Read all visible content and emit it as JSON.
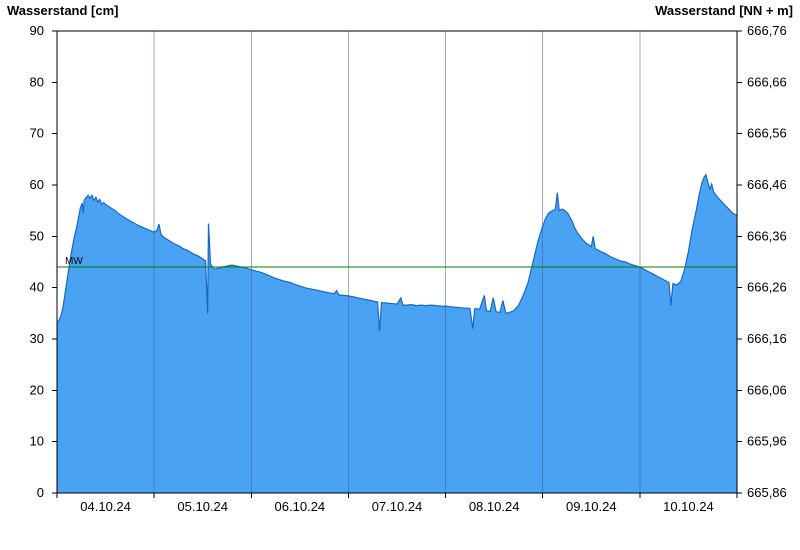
{
  "chart_data": {
    "type": "area",
    "title_left_axis": "Wasserstand [cm]",
    "title_right_axis": "Wasserstand [NN + m]",
    "xlim_days": [
      0,
      7
    ],
    "x_tick_labels": [
      "04.10.24",
      "05.10.24",
      "06.10.24",
      "07.10.24",
      "08.10.24",
      "09.10.24",
      "10.10.24"
    ],
    "ylim_cm": [
      0,
      90
    ],
    "y_ticks_cm": [
      0,
      10,
      20,
      30,
      40,
      50,
      60,
      70,
      80,
      90
    ],
    "right_axis_labels": [
      "665,86",
      "665,96",
      "666,06",
      "666,16",
      "666,26",
      "666,36",
      "666,46",
      "666,56",
      "666,66",
      "666,76"
    ],
    "mean_water_line": {
      "label": "MW",
      "value_cm": 44
    },
    "legend": "none",
    "grid": "vertical-day-boundaries",
    "colors": {
      "fill": "#4aa2f2",
      "line": "#1668c8",
      "mw_line": "#008000",
      "grid": "#3d5a85",
      "axis": "#000000"
    },
    "series": [
      {
        "name": "Wasserstand",
        "points": [
          [
            0.0,
            33.2
          ],
          [
            0.02,
            33.6
          ],
          [
            0.04,
            34.5
          ],
          [
            0.06,
            36.0
          ],
          [
            0.08,
            38.5
          ],
          [
            0.1,
            41.0
          ],
          [
            0.12,
            43.5
          ],
          [
            0.14,
            46.0
          ],
          [
            0.16,
            48.0
          ],
          [
            0.18,
            50.0
          ],
          [
            0.2,
            51.5
          ],
          [
            0.22,
            53.5
          ],
          [
            0.24,
            55.5
          ],
          [
            0.26,
            56.5
          ],
          [
            0.27,
            54.5
          ],
          [
            0.28,
            57.0
          ],
          [
            0.3,
            57.5
          ],
          [
            0.32,
            58.0
          ],
          [
            0.34,
            57.4
          ],
          [
            0.36,
            58.0
          ],
          [
            0.38,
            57.0
          ],
          [
            0.4,
            57.6
          ],
          [
            0.42,
            56.6
          ],
          [
            0.44,
            57.2
          ],
          [
            0.46,
            56.2
          ],
          [
            0.48,
            56.6
          ],
          [
            0.5,
            56.2
          ],
          [
            0.55,
            55.6
          ],
          [
            0.6,
            55.0
          ],
          [
            0.65,
            54.2
          ],
          [
            0.7,
            53.6
          ],
          [
            0.75,
            53.0
          ],
          [
            0.8,
            52.5
          ],
          [
            0.85,
            52.0
          ],
          [
            0.9,
            51.6
          ],
          [
            0.95,
            51.2
          ],
          [
            1.0,
            50.8
          ],
          [
            1.03,
            51.2
          ],
          [
            1.05,
            52.4
          ],
          [
            1.07,
            50.4
          ],
          [
            1.1,
            49.8
          ],
          [
            1.15,
            49.2
          ],
          [
            1.2,
            48.6
          ],
          [
            1.25,
            48.2
          ],
          [
            1.3,
            47.6
          ],
          [
            1.35,
            47.2
          ],
          [
            1.4,
            46.6
          ],
          [
            1.45,
            46.2
          ],
          [
            1.5,
            45.6
          ],
          [
            1.53,
            45.2
          ],
          [
            1.55,
            35.0
          ],
          [
            1.56,
            52.5
          ],
          [
            1.58,
            44.6
          ],
          [
            1.62,
            43.6
          ],
          [
            1.66,
            43.8
          ],
          [
            1.7,
            44.0
          ],
          [
            1.75,
            44.2
          ],
          [
            1.8,
            44.4
          ],
          [
            1.85,
            44.2
          ],
          [
            1.9,
            44.0
          ],
          [
            1.95,
            43.8
          ],
          [
            2.0,
            43.5
          ],
          [
            2.05,
            43.2
          ],
          [
            2.1,
            43.0
          ],
          [
            2.15,
            42.6
          ],
          [
            2.2,
            42.2
          ],
          [
            2.25,
            41.8
          ],
          [
            2.3,
            41.5
          ],
          [
            2.35,
            41.2
          ],
          [
            2.4,
            41.0
          ],
          [
            2.45,
            40.6
          ],
          [
            2.5,
            40.3
          ],
          [
            2.55,
            40.0
          ],
          [
            2.6,
            39.8
          ],
          [
            2.65,
            39.6
          ],
          [
            2.7,
            39.4
          ],
          [
            2.75,
            39.2
          ],
          [
            2.8,
            39.0
          ],
          [
            2.85,
            38.8
          ],
          [
            2.88,
            39.4
          ],
          [
            2.9,
            38.6
          ],
          [
            2.95,
            38.5
          ],
          [
            3.0,
            38.4
          ],
          [
            3.05,
            38.2
          ],
          [
            3.1,
            38.0
          ],
          [
            3.15,
            37.8
          ],
          [
            3.2,
            37.6
          ],
          [
            3.25,
            37.4
          ],
          [
            3.3,
            37.2
          ],
          [
            3.32,
            31.5
          ],
          [
            3.34,
            37.1
          ],
          [
            3.4,
            37.0
          ],
          [
            3.45,
            36.9
          ],
          [
            3.5,
            36.8
          ],
          [
            3.54,
            38.0
          ],
          [
            3.56,
            36.6
          ],
          [
            3.6,
            36.6
          ],
          [
            3.65,
            36.7
          ],
          [
            3.7,
            36.5
          ],
          [
            3.75,
            36.6
          ],
          [
            3.8,
            36.5
          ],
          [
            3.85,
            36.6
          ],
          [
            3.9,
            36.5
          ],
          [
            3.95,
            36.4
          ],
          [
            4.0,
            36.4
          ],
          [
            4.05,
            36.3
          ],
          [
            4.1,
            36.2
          ],
          [
            4.15,
            36.1
          ],
          [
            4.2,
            36.0
          ],
          [
            4.25,
            36.0
          ],
          [
            4.28,
            32.0
          ],
          [
            4.3,
            35.9
          ],
          [
            4.35,
            35.8
          ],
          [
            4.4,
            38.5
          ],
          [
            4.42,
            35.5
          ],
          [
            4.46,
            35.4
          ],
          [
            4.49,
            38.0
          ],
          [
            4.52,
            35.3
          ],
          [
            4.56,
            35.2
          ],
          [
            4.59,
            37.5
          ],
          [
            4.62,
            35.0
          ],
          [
            4.66,
            35.2
          ],
          [
            4.7,
            35.5
          ],
          [
            4.75,
            36.5
          ],
          [
            4.8,
            38.5
          ],
          [
            4.85,
            41.0
          ],
          [
            4.9,
            45.0
          ],
          [
            4.95,
            49.0
          ],
          [
            5.0,
            52.0
          ],
          [
            5.03,
            53.5
          ],
          [
            5.06,
            54.5
          ],
          [
            5.1,
            55.0
          ],
          [
            5.13,
            55.2
          ],
          [
            5.15,
            58.5
          ],
          [
            5.17,
            55.0
          ],
          [
            5.2,
            55.3
          ],
          [
            5.23,
            55.0
          ],
          [
            5.26,
            54.4
          ],
          [
            5.3,
            53.0
          ],
          [
            5.33,
            51.6
          ],
          [
            5.36,
            50.6
          ],
          [
            5.4,
            49.6
          ],
          [
            5.45,
            48.6
          ],
          [
            5.5,
            48.0
          ],
          [
            5.52,
            50.0
          ],
          [
            5.54,
            47.6
          ],
          [
            5.6,
            47.0
          ],
          [
            5.65,
            46.6
          ],
          [
            5.7,
            46.0
          ],
          [
            5.75,
            45.6
          ],
          [
            5.8,
            45.2
          ],
          [
            5.85,
            45.0
          ],
          [
            5.9,
            44.6
          ],
          [
            5.95,
            44.3
          ],
          [
            6.0,
            44.0
          ],
          [
            6.05,
            43.5
          ],
          [
            6.1,
            43.0
          ],
          [
            6.15,
            42.5
          ],
          [
            6.2,
            42.0
          ],
          [
            6.25,
            41.5
          ],
          [
            6.3,
            41.0
          ],
          [
            6.32,
            36.5
          ],
          [
            6.34,
            40.8
          ],
          [
            6.38,
            40.5
          ],
          [
            6.42,
            41.2
          ],
          [
            6.46,
            43.5
          ],
          [
            6.5,
            47.0
          ],
          [
            6.54,
            51.5
          ],
          [
            6.58,
            55.0
          ],
          [
            6.61,
            58.0
          ],
          [
            6.64,
            60.5
          ],
          [
            6.66,
            61.5
          ],
          [
            6.68,
            62.0
          ],
          [
            6.7,
            60.5
          ],
          [
            6.72,
            59.2
          ],
          [
            6.74,
            60.2
          ],
          [
            6.76,
            58.6
          ],
          [
            6.8,
            57.6
          ],
          [
            6.85,
            56.6
          ],
          [
            6.9,
            55.6
          ],
          [
            6.95,
            54.6
          ],
          [
            7.0,
            54.0
          ]
        ]
      }
    ]
  }
}
